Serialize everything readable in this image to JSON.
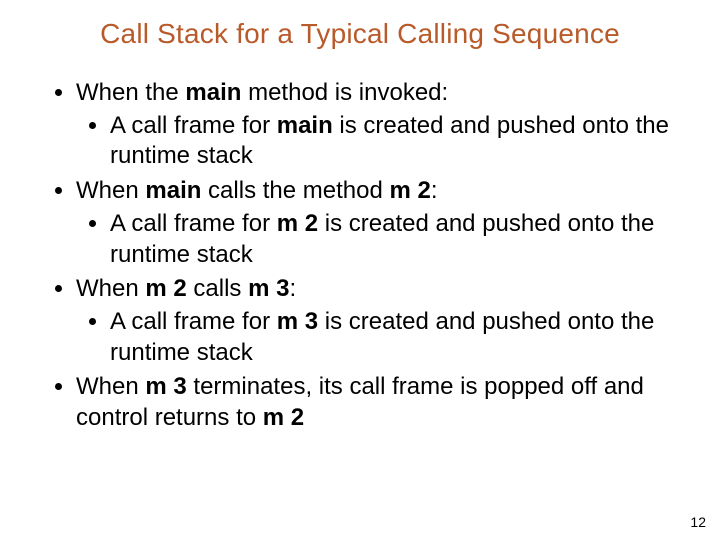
{
  "title": {
    "text": "Call Stack for a Typical Calling Sequence",
    "color": "#b85a2a",
    "fontsize_pt": 28
  },
  "body": {
    "color": "#000000",
    "fontsize_pt": 24,
    "bullets": [
      {
        "runs": [
          {
            "t": "When the "
          },
          {
            "t": "main",
            "bold": true
          },
          {
            "t": " method is invoked:"
          }
        ],
        "sub": [
          {
            "runs": [
              {
                "t": "A call frame for "
              },
              {
                "t": "main",
                "bold": true
              },
              {
                "t": " is created and pushed onto the runtime stack"
              }
            ]
          }
        ]
      },
      {
        "runs": [
          {
            "t": "When "
          },
          {
            "t": "main",
            "bold": true
          },
          {
            "t": " calls the method "
          },
          {
            "t": "m 2",
            "bold": true
          },
          {
            "t": ":"
          }
        ],
        "sub": [
          {
            "runs": [
              {
                "t": "A call frame for "
              },
              {
                "t": "m 2",
                "bold": true
              },
              {
                "t": " is created and pushed onto the runtime stack"
              }
            ]
          }
        ]
      },
      {
        "runs": [
          {
            "t": "When "
          },
          {
            "t": "m 2",
            "bold": true
          },
          {
            "t": " calls "
          },
          {
            "t": "m 3",
            "bold": true
          },
          {
            "t": ":"
          }
        ],
        "sub": [
          {
            "runs": [
              {
                "t": "A call frame for "
              },
              {
                "t": "m 3",
                "bold": true
              },
              {
                "t": " is created and pushed onto the runtime stack"
              }
            ]
          }
        ]
      },
      {
        "runs": [
          {
            "t": "When "
          },
          {
            "t": "m 3",
            "bold": true
          },
          {
            "t": " terminates, its call frame is popped off and control returns to "
          },
          {
            "t": "m 2",
            "bold": true
          }
        ]
      }
    ]
  },
  "page_number": "12",
  "background_color": "#ffffff"
}
